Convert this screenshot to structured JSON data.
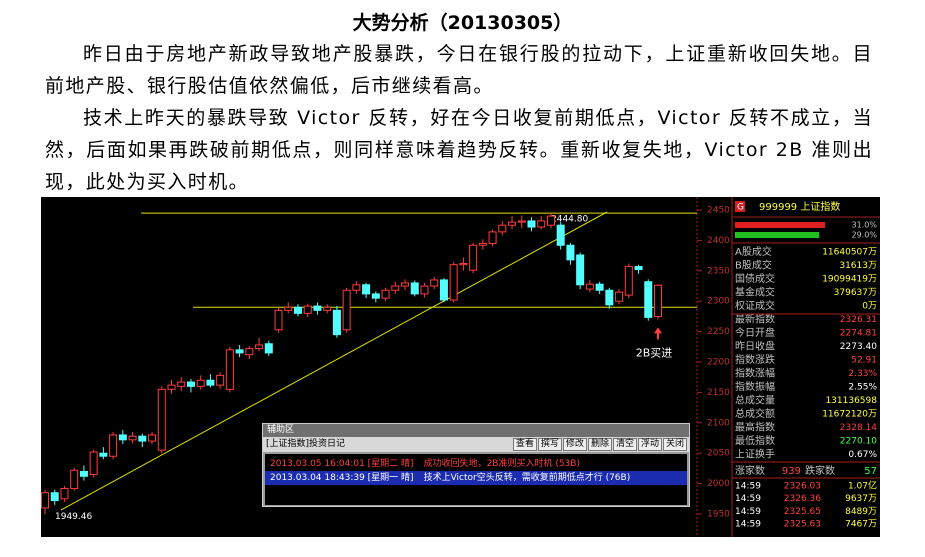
{
  "article": {
    "title": "大势分析（20130305）",
    "paragraphs": [
      "昨日由于房地产新政导致地产股暴跌，今日在银行股的拉动下，上证重新收回失地。目前地产股、银行股估值依然偏低，后市继续看高。",
      "技术上昨天的暴跌导致 Victor 反转，好在今日收复前期低点，Victor 反转不成立，当然，后面如果再跌破前期低点，则同样意味着趋势反转。重新收复失地，Victor 2B 准则出现，此处为买入时机。"
    ]
  },
  "chart_data": {
    "type": "candlestick",
    "open": [
      1960,
      1985,
      1975,
      1992,
      2020,
      2015,
      2050,
      2045,
      2080,
      2072,
      2078,
      2070,
      2055,
      2155,
      2160,
      2167,
      2160,
      2170,
      2162,
      2155,
      2220,
      2212,
      2222,
      2230,
      2253,
      2285,
      2290,
      2280,
      2292,
      2285,
      2285,
      2253,
      2318,
      2327,
      2312,
      2305,
      2318,
      2325,
      2330,
      2312,
      2325,
      2335,
      2302,
      2360,
      2351,
      2392,
      2395,
      2414,
      2425,
      2430,
      2432,
      2422,
      2425,
      2425,
      2392,
      2376,
      2320,
      2328,
      2318,
      2300,
      2310,
      2357,
      2332,
      2274.81
    ],
    "high": [
      1990,
      1990,
      1996,
      2026,
      2030,
      2056,
      2060,
      2085,
      2088,
      2085,
      2082,
      2085,
      2160,
      2170,
      2175,
      2172,
      2178,
      2180,
      2183,
      2225,
      2228,
      2226,
      2240,
      2235,
      2290,
      2298,
      2295,
      2296,
      2298,
      2295,
      2292,
      2322,
      2333,
      2330,
      2316,
      2322,
      2332,
      2336,
      2334,
      2330,
      2340,
      2338,
      2364,
      2372,
      2396,
      2402,
      2418,
      2432,
      2440,
      2441,
      2438,
      2440,
      2444.8,
      2430,
      2396,
      2380,
      2335,
      2332,
      2322,
      2320,
      2362,
      2360,
      2336,
      2328.14
    ],
    "low": [
      1949.46,
      1965,
      1970,
      1988,
      2005,
      2010,
      2040,
      2040,
      2065,
      2066,
      2060,
      2065,
      2050,
      2148,
      2152,
      2150,
      2155,
      2158,
      2156,
      2150,
      2208,
      2205,
      2218,
      2210,
      2248,
      2280,
      2275,
      2274,
      2278,
      2280,
      2240,
      2248,
      2312,
      2305,
      2298,
      2300,
      2312,
      2318,
      2308,
      2306,
      2320,
      2298,
      2298,
      2350,
      2346,
      2385,
      2390,
      2408,
      2418,
      2420,
      2415,
      2418,
      2420,
      2385,
      2360,
      2320,
      2315,
      2312,
      2288,
      2295,
      2305,
      2345,
      2268,
      2270.1
    ],
    "close": [
      1985,
      1972,
      1992,
      2022,
      2012,
      2052,
      2045,
      2080,
      2072,
      2078,
      2070,
      2080,
      2155,
      2162,
      2167,
      2160,
      2170,
      2162,
      2178,
      2220,
      2215,
      2222,
      2228,
      2215,
      2285,
      2290,
      2280,
      2292,
      2285,
      2290,
      2245,
      2318,
      2327,
      2312,
      2305,
      2318,
      2325,
      2330,
      2312,
      2325,
      2335,
      2302,
      2360,
      2362,
      2392,
      2395,
      2414,
      2425,
      2430,
      2432,
      2422,
      2432,
      2440,
      2392,
      2368,
      2327,
      2328,
      2318,
      2294,
      2315,
      2357,
      2352,
      2273.4,
      2326.31
    ],
    "ylim": [
      1950,
      2450
    ],
    "yticks": [
      1950,
      2000,
      2050,
      2100,
      2150,
      2200,
      2250,
      2300,
      2350,
      2400,
      2450
    ],
    "up_color": "#ff3c3c",
    "down_color": "#54ffff",
    "reference_lines": [
      {
        "value": 2444.8,
        "label": "2444.80"
      },
      {
        "value": 2290
      }
    ],
    "low_label": {
      "value": 1949.46,
      "label": "1949.46"
    },
    "signal_label": "2B买进"
  },
  "quote_panel": {
    "badge": "G",
    "name": "999999 上证指数",
    "bars": [
      {
        "value": 31.0,
        "label": "31.0%",
        "color": "#e02020"
      },
      {
        "value": 29.0,
        "label": "29.0%",
        "color": "#20c020"
      }
    ],
    "rows": [
      {
        "label": "A股成交",
        "value": "11640507万",
        "color": "#ffff40"
      },
      {
        "label": "B股成交",
        "value": "31613万",
        "color": "#ffff40"
      },
      {
        "label": "国债成交",
        "value": "19099419万",
        "color": "#ffff40"
      },
      {
        "label": "基金成交",
        "value": "379637万",
        "color": "#ffff40"
      },
      {
        "label": "权证成交",
        "value": "0万",
        "color": "#ffff40"
      },
      {
        "label": "最新指数",
        "value": "2326.31",
        "color": "#ff4040"
      },
      {
        "label": "今日开盘",
        "value": "2274.81",
        "color": "#ff4040"
      },
      {
        "label": "昨日收盘",
        "value": "2273.40",
        "color": "#ffffff"
      },
      {
        "label": "指数涨跌",
        "value": "52.91",
        "color": "#ff4040"
      },
      {
        "label": "指数涨幅",
        "value": "2.33%",
        "color": "#ff4040"
      },
      {
        "label": "指数振幅",
        "value": "2.55%",
        "color": "#ffffff"
      },
      {
        "label": "总成交量",
        "value": "131136598",
        "color": "#ffff40"
      },
      {
        "label": "总成交额",
        "value": "11672120万",
        "color": "#ffff40"
      },
      {
        "label": "最高指数",
        "value": "2328.14",
        "color": "#ff4040"
      },
      {
        "label": "最低指数",
        "value": "2270.10",
        "color": "#40ff40"
      },
      {
        "label": "上证换手",
        "value": "0.67%",
        "color": "#ffffff"
      }
    ],
    "breadth": {
      "up_label": "涨家数",
      "up": "939",
      "down_label": "跌家数",
      "down": "57"
    },
    "ticks": [
      [
        "14:59",
        "2326.03",
        "1.07亿"
      ],
      [
        "14:59",
        "2326.36",
        "9637万"
      ],
      [
        "14:59",
        "2325.65",
        "8489万"
      ],
      [
        "14:59",
        "2325.63",
        "7467万"
      ]
    ]
  },
  "diary_window": {
    "title": "辅助区",
    "caption": "[上证指数]投资日记",
    "buttons": [
      "查看",
      "撰写",
      "修改",
      "删除",
      "清空",
      "浮动",
      "关闭"
    ],
    "entries": [
      {
        "time": "2013.03.05 16:04:01 [星期二 晴]",
        "text": "成功收回失地，2B准则买入时机 (53B)"
      },
      {
        "time": "2013.03.04 18:43:39 [星期一 晴]",
        "text": "技术上Victor空头反转，需收复前期低点才行 (76B)"
      }
    ]
  }
}
